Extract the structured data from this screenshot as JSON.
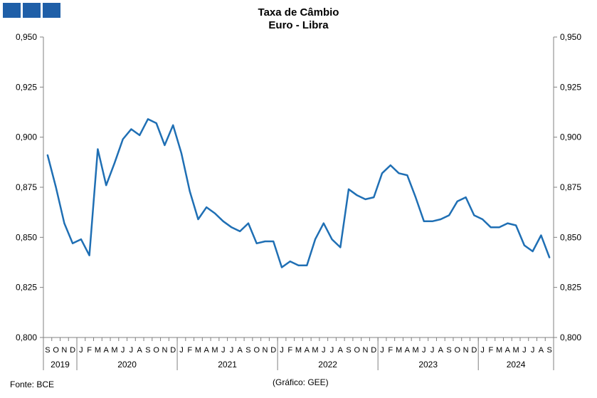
{
  "header": {
    "logo_name": "gee-logo"
  },
  "footer": {
    "source": "Fonte: BCE",
    "credit": "(Gráfico: GEE)"
  },
  "chart_data": {
    "type": "line",
    "title": "Taxa de Câmbio",
    "subtitle": "Euro - Libra",
    "xlabel": "",
    "ylabel": "",
    "ylim": [
      0.8,
      0.95
    ],
    "yticks": [
      "0,800",
      "0,825",
      "0,850",
      "0,875",
      "0,900",
      "0,925",
      "0,950"
    ],
    "grid": false,
    "legend": "none",
    "color": "#1f6fb4",
    "months": [
      "S",
      "O",
      "N",
      "D",
      "J",
      "F",
      "M",
      "A",
      "M",
      "J",
      "J",
      "A",
      "S",
      "O",
      "N",
      "D",
      "J",
      "F",
      "M",
      "A",
      "M",
      "J",
      "J",
      "A",
      "S",
      "O",
      "N",
      "D",
      "J",
      "F",
      "M",
      "A",
      "M",
      "J",
      "J",
      "A",
      "S",
      "O",
      "N",
      "D",
      "J",
      "F",
      "M",
      "A",
      "M",
      "J",
      "J",
      "A",
      "S",
      "O",
      "N",
      "D",
      "J",
      "F",
      "M",
      "A",
      "M",
      "J",
      "J",
      "A",
      "S"
    ],
    "years": [
      {
        "label": "2019",
        "start": 0,
        "end": 3
      },
      {
        "label": "2020",
        "start": 4,
        "end": 15
      },
      {
        "label": "2021",
        "start": 16,
        "end": 27
      },
      {
        "label": "2022",
        "start": 28,
        "end": 39
      },
      {
        "label": "2023",
        "start": 40,
        "end": 51
      },
      {
        "label": "2024",
        "start": 52,
        "end": 60
      }
    ],
    "values": [
      0.891,
      0.875,
      0.857,
      0.847,
      0.849,
      0.841,
      0.894,
      0.876,
      0.887,
      0.899,
      0.904,
      0.901,
      0.909,
      0.907,
      0.896,
      0.906,
      0.892,
      0.873,
      0.859,
      0.865,
      0.862,
      0.858,
      0.855,
      0.853,
      0.857,
      0.847,
      0.848,
      0.848,
      0.835,
      0.838,
      0.836,
      0.836,
      0.849,
      0.857,
      0.849,
      0.845,
      0.874,
      0.871,
      0.869,
      0.87,
      0.882,
      0.886,
      0.882,
      0.881,
      0.87,
      0.858,
      0.858,
      0.859,
      0.861,
      0.868,
      0.87,
      0.861,
      0.859,
      0.855,
      0.855,
      0.857,
      0.856,
      0.846,
      0.843,
      0.851,
      0.84
    ]
  }
}
